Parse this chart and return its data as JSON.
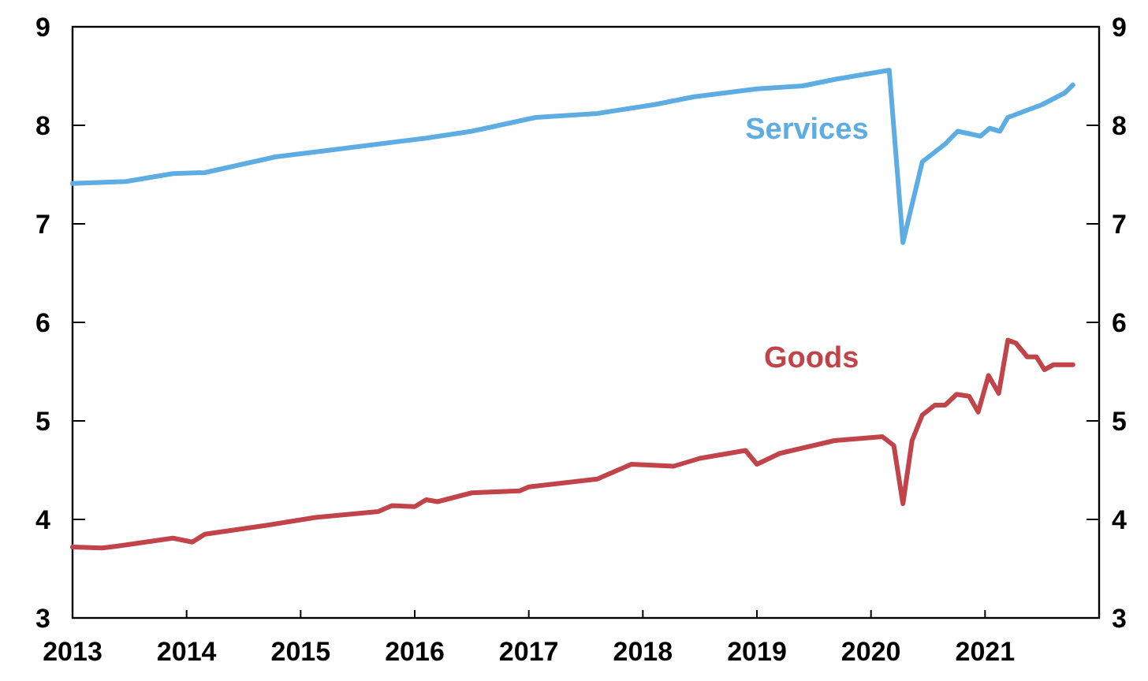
{
  "chart_data": {
    "type": "line",
    "xlim": [
      2013,
      2022
    ],
    "xticks": [
      2013,
      2014,
      2015,
      2016,
      2017,
      2018,
      2019,
      2020,
      2021
    ],
    "ylim": [
      3,
      9
    ],
    "yticks": [
      3,
      4,
      5,
      6,
      7,
      8,
      9
    ],
    "y2lim": [
      3,
      9
    ],
    "y2ticks": [
      3,
      4,
      5,
      6,
      7,
      8,
      9
    ],
    "grid": false,
    "marker": "none",
    "line_style": "solid",
    "series": [
      {
        "name": "Services",
        "color": "#5dade2",
        "x": [
          2013.0,
          2013.47,
          2013.88,
          2014.16,
          2014.78,
          2015.27,
          2016.1,
          2016.5,
          2017.06,
          2017.6,
          2018.1,
          2018.45,
          2019.0,
          2019.4,
          2019.7,
          2020.06,
          2020.16,
          2020.28,
          2020.45,
          2020.65,
          2020.76,
          2020.96,
          2021.04,
          2021.13,
          2021.2,
          2021.5,
          2021.7,
          2021.77
        ],
        "values": [
          7.41,
          7.43,
          7.51,
          7.52,
          7.68,
          7.75,
          7.87,
          7.94,
          8.08,
          8.12,
          8.21,
          8.29,
          8.37,
          8.4,
          8.47,
          8.54,
          8.56,
          6.81,
          7.63,
          7.81,
          7.94,
          7.89,
          7.97,
          7.94,
          8.08,
          8.21,
          8.33,
          8.41
        ]
      },
      {
        "name": "Goods",
        "color": "#c0444a",
        "x": [
          2013.0,
          2013.26,
          2013.4,
          2013.88,
          2014.05,
          2014.16,
          2014.7,
          2015.13,
          2015.68,
          2015.8,
          2016.0,
          2016.1,
          2016.2,
          2016.5,
          2016.92,
          2017.0,
          2017.6,
          2017.9,
          2018.27,
          2018.5,
          2018.9,
          2019.0,
          2019.2,
          2019.68,
          2020.1,
          2020.2,
          2020.28,
          2020.36,
          2020.45,
          2020.56,
          2020.65,
          2020.75,
          2020.86,
          2020.94,
          2021.03,
          2021.12,
          2021.2,
          2021.27,
          2021.37,
          2021.45,
          2021.52,
          2021.6,
          2021.77
        ],
        "values": [
          3.72,
          3.71,
          3.73,
          3.81,
          3.77,
          3.85,
          3.94,
          4.02,
          4.08,
          4.14,
          4.13,
          4.2,
          4.18,
          4.27,
          4.29,
          4.33,
          4.41,
          4.56,
          4.54,
          4.62,
          4.7,
          4.56,
          4.67,
          4.8,
          4.84,
          4.75,
          4.16,
          4.8,
          5.06,
          5.16,
          5.16,
          5.27,
          5.25,
          5.09,
          5.46,
          5.28,
          5.82,
          5.79,
          5.65,
          5.65,
          5.52,
          5.57,
          5.57
        ]
      }
    ]
  }
}
